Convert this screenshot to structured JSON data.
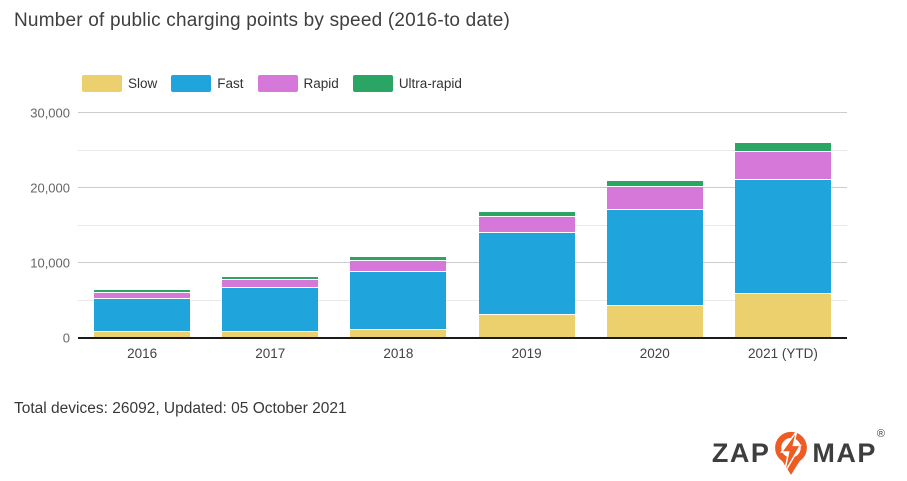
{
  "title": "Number of public charging points by speed (2016-to date)",
  "footer": {
    "text": "Total devices: 26092, Updated: 05 October 2021"
  },
  "logo": {
    "zap": "ZAP",
    "map": "MAP",
    "registered": "®",
    "orange": "#ee5c25",
    "dark": "#3e3e3e",
    "pin_name": "lightning-pin-icon"
  },
  "colors": {
    "slow": "#edd06e",
    "fast": "#1fa4db",
    "rapid": "#d678d9",
    "ultra_rapid": "#2ba563",
    "grid_major": "#cccccc",
    "grid_minor": "#e9e9e9",
    "axis": "#1a1a1a"
  },
  "chart_data": {
    "type": "bar",
    "stacked": true,
    "title": "Number of public charging points by speed (2016-to date)",
    "xlabel": "",
    "ylabel": "",
    "categories": [
      "2016",
      "2017",
      "2018",
      "2019",
      "2020",
      "2021 (YTD)"
    ],
    "series": [
      {
        "name": "Slow",
        "color": "#edd06e",
        "values": [
          900,
          1000,
          1200,
          3200,
          4450,
          6000
        ]
      },
      {
        "name": "Fast",
        "color": "#1fa4db",
        "values": [
          4450,
          5850,
          7800,
          11000,
          12800,
          15250
        ]
      },
      {
        "name": "Rapid",
        "color": "#d678d9",
        "values": [
          800,
          1050,
          1450,
          2100,
          3000,
          3720
        ]
      },
      {
        "name": "Ultra-rapid",
        "color": "#2ba563",
        "values": [
          250,
          350,
          450,
          700,
          850,
          1122
        ]
      }
    ],
    "totals": [
      6400,
      8250,
      10900,
      17000,
      21100,
      26092
    ],
    "ylim": [
      0,
      30000
    ],
    "yticks_major": [
      0,
      10000,
      20000,
      30000
    ],
    "ytick_labels": [
      "0",
      "10,000",
      "20,000",
      "30,000"
    ],
    "yticks_minor": [
      5000,
      15000,
      25000
    ],
    "grid": true,
    "legend_position": "top-left"
  }
}
